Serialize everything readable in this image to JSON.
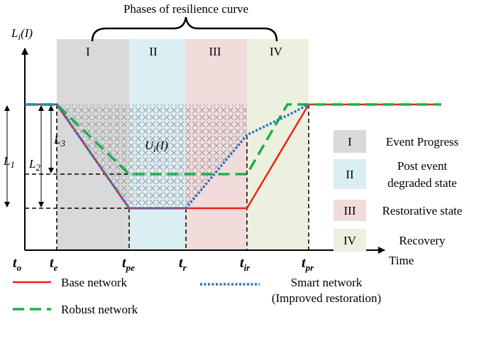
{
  "title": "Phases of resilience curve",
  "y_axis": {
    "base": "L",
    "sub": "i",
    "rest": "(I)"
  },
  "x_axis": "Time",
  "phases": [
    "I",
    "II",
    "III",
    "IV"
  ],
  "area_label": {
    "base": "U",
    "sub": "i",
    "rest": "(I)"
  },
  "levels": [
    {
      "base": "L",
      "sub": "1"
    },
    {
      "base": "L",
      "sub": "2"
    },
    {
      "base": "L",
      "sub": "3"
    }
  ],
  "times": [
    {
      "base": "t",
      "sub": "o"
    },
    {
      "base": "t",
      "sub": "e"
    },
    {
      "base": "t",
      "sub": "pe"
    },
    {
      "base": "t",
      "sub": "r"
    },
    {
      "base": "t",
      "sub": "ir"
    },
    {
      "base": "t",
      "sub": "pr"
    }
  ],
  "phase_legend": [
    {
      "symbol": "I",
      "lines": [
        "Event Progress"
      ]
    },
    {
      "symbol": "II",
      "lines": [
        "Post event",
        "degraded state"
      ]
    },
    {
      "symbol": "III",
      "lines": [
        "Restorative state"
      ]
    },
    {
      "symbol": "IV",
      "lines": [
        "Recovery"
      ]
    }
  ],
  "line_legend": [
    {
      "lines": [
        "Base network"
      ]
    },
    {
      "lines": [
        "Robust network"
      ]
    },
    {
      "lines": [
        "Smart network",
        "(Improved restoration)"
      ]
    }
  ]
}
